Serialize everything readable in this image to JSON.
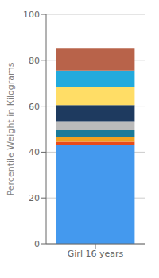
{
  "chart_data": {
    "type": "bar",
    "categories": [
      "Girl 16 years"
    ],
    "series": [
      {
        "color": "#4499EE",
        "values": [
          43.0
        ]
      },
      {
        "color": "#E84B1A",
        "values": [
          1.5
        ]
      },
      {
        "color": "#F0A020",
        "values": [
          2.0
        ]
      },
      {
        "color": "#1A7A99",
        "values": [
          3.0
        ]
      },
      {
        "color": "#BBBBBB",
        "values": [
          4.0
        ]
      },
      {
        "color": "#1E3A5F",
        "values": [
          7.0
        ]
      },
      {
        "color": "#FFDD66",
        "values": [
          8.0
        ]
      },
      {
        "color": "#22AADD",
        "values": [
          7.0
        ]
      },
      {
        "color": "#B8634A",
        "values": [
          9.5
        ]
      }
    ],
    "stacked": true,
    "ylabel": "Percentile Weight in Kilograms",
    "ylim": [
      0,
      100
    ],
    "yticks": [
      0,
      20,
      40,
      60,
      80,
      100
    ],
    "grid": true
  }
}
